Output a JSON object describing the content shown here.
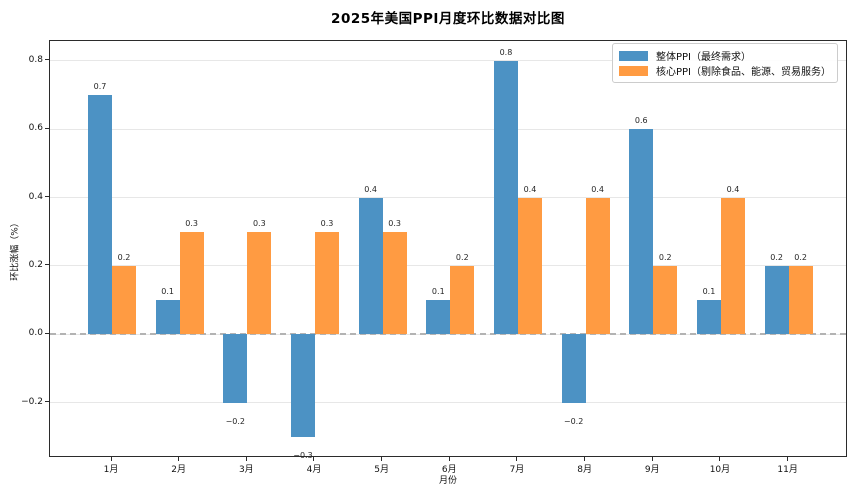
{
  "title": "2025年美国PPI月度环比数据对比图",
  "chart_data": {
    "type": "bar",
    "categories": [
      "1月",
      "2月",
      "3月",
      "4月",
      "5月",
      "6月",
      "7月",
      "8月",
      "9月",
      "10月",
      "11月"
    ],
    "series": [
      {
        "name": "整体PPI（最终需求）",
        "color": "#4c92c4",
        "values": [
          0.7,
          0.1,
          -0.2,
          -0.3,
          0.4,
          0.1,
          0.8,
          -0.2,
          0.6,
          0.1,
          0.2
        ]
      },
      {
        "name": "核心PPI（剔除食品、能源、贸易服务）",
        "color": "#ff9b42",
        "values": [
          0.2,
          0.3,
          0.3,
          0.3,
          0.3,
          0.2,
          0.4,
          0.4,
          0.2,
          0.4,
          0.2
        ]
      }
    ],
    "title": "2025年美国PPI月度环比数据对比图",
    "xlabel": "月份",
    "ylabel": "环比涨幅（%）",
    "yticks": [
      0.8,
      0.6,
      0.4,
      0.2,
      0.0,
      -0.2
    ],
    "ylim": [
      -0.362,
      0.858
    ],
    "grid": true,
    "legend_position": "upper-right",
    "zero_line": "dashed",
    "bar_value_labels": true
  },
  "colors": {
    "grid": "#e7e7e7",
    "zero_line": "#b3b3b3",
    "spine": "#2b2b2b",
    "text": "#1a1a1a"
  }
}
